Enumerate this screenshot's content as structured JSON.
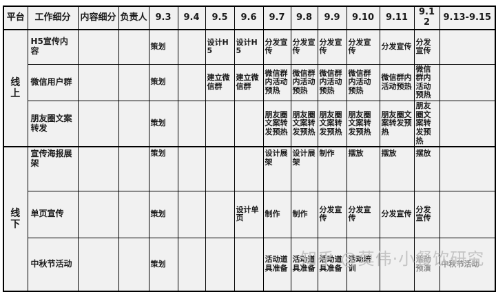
{
  "table": {
    "column_headers": [
      "平台",
      "工作细分",
      "内容细分",
      "负责人",
      "9.3",
      "9.4",
      "9.5",
      "9.6",
      "9.7",
      "9.8",
      "9.9",
      "9.10",
      "9.11",
      "9.12",
      "9.13-9.15"
    ],
    "groups": [
      {
        "platform": "线上",
        "rows": [
          {
            "task": "H5宣传内容",
            "content": "",
            "owner": "",
            "cells": [
              "策划",
              "",
              "设计H5",
              "设计H5",
              "分发宣传",
              "分发宣传",
              "分发宣传",
              "分发宣传",
              "分发宣传",
              "分发宣传",
              ""
            ]
          },
          {
            "task": "微信用户群",
            "content": "",
            "owner": "",
            "cells": [
              "策划",
              "",
              "建立微信群",
              "建立微信群",
              "微信群内活动预热",
              "微信群内活动预热",
              "微信群内活动预热",
              "微信群内活动预热",
              "微信群内活动预热",
              "微信群内活动预热",
              ""
            ]
          },
          {
            "task": "朋友圈文案转发",
            "content": "",
            "owner": "",
            "cells": [
              "策划",
              "",
              "",
              "",
              "朋友圈文案转发预热",
              "朋友圈文案转发预热",
              "朋友圈文案转发预热",
              "朋友圈文案转发预热",
              "朋友圈文案转发预热",
              "朋友圈文案转发预热",
              ""
            ]
          }
        ]
      },
      {
        "platform": "线下",
        "rows": [
          {
            "task": "宣传海报展架",
            "content": "",
            "owner": "",
            "cells": [
              "策划",
              "",
              "",
              "",
              "设计展架",
              "设计展架",
              "制作",
              "摆放",
              "摆放",
              "摆放",
              ""
            ]
          },
          {
            "task": "单页宣传",
            "content": "",
            "owner": "",
            "cells": [
              "策划",
              "",
              "",
              "设计单页",
              "制作",
              "制作",
              "分发宣传",
              "分发宣传",
              "分发宣传",
              "分发宣传",
              ""
            ]
          },
          {
            "task": "中秋节活动",
            "content": "",
            "owner": "",
            "cells": [
              "策划",
              "",
              "",
              "",
              "活动道具准备",
              "活动道具准备",
              "活动道具准备",
              "活动培训",
              "",
              "活动预演",
              "中秋节活动"
            ],
            "faint_cells": [
              9,
              10
            ]
          }
        ]
      }
    ]
  },
  "watermark": {
    "text": "知乎 @莫伟·小餐饮研究"
  },
  "colors": {
    "cell_bg": "#f1f1f1",
    "border": "#000000",
    "text": "#1a1a1a",
    "watermark": "#bdbdbd"
  }
}
